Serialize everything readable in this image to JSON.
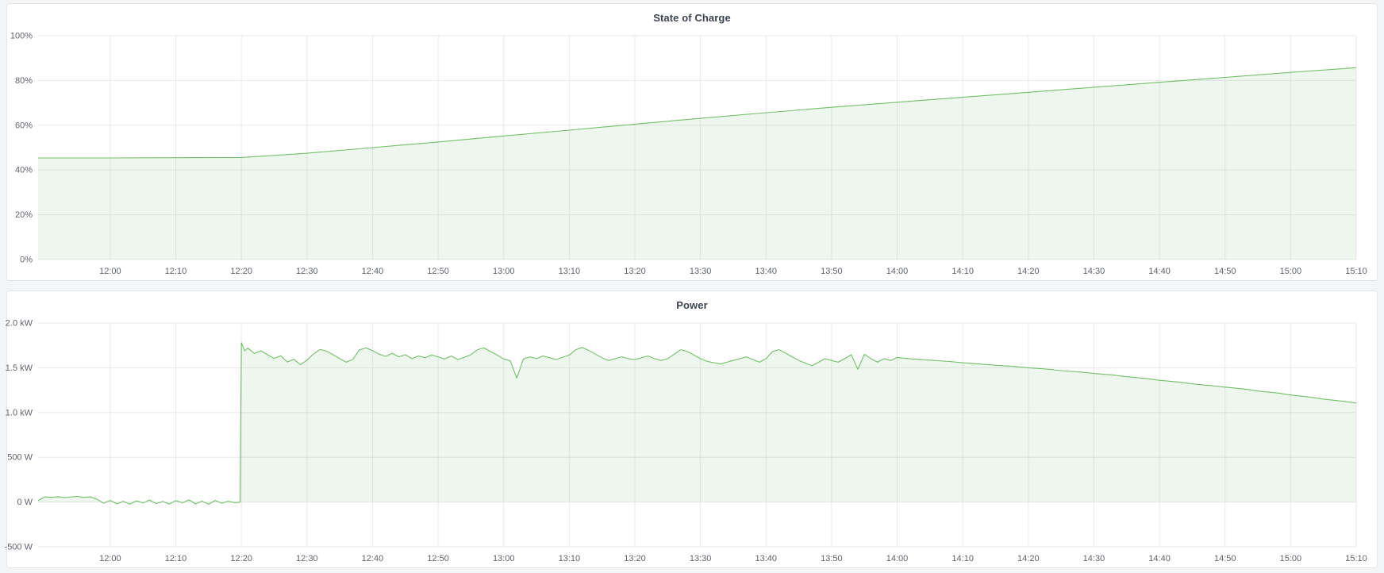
{
  "colors": {
    "line": "#73bf69",
    "fill": "#73bf69",
    "fill_opacity": 0.12,
    "grid": "#e9eaec",
    "axis_text": "#5f646b",
    "title_text": "#3e4450",
    "panel_bg": "#ffffff",
    "panel_border": "#e3e6e8",
    "page_bg": "#f4f5f6"
  },
  "time_axis": {
    "start_min": 709,
    "end_min": 910,
    "tick_minutes": [
      720,
      730,
      740,
      750,
      760,
      770,
      780,
      790,
      800,
      810,
      820,
      830,
      840,
      850,
      860,
      870,
      880,
      890,
      900,
      910
    ],
    "tick_labels": [
      "12:00",
      "12:10",
      "12:20",
      "12:30",
      "12:40",
      "12:50",
      "13:00",
      "13:10",
      "13:20",
      "13:30",
      "13:40",
      "13:50",
      "14:00",
      "14:10",
      "14:20",
      "14:30",
      "14:40",
      "14:50",
      "15:00",
      "15:10"
    ]
  },
  "chart_data": [
    {
      "type": "area",
      "title": "State of Charge",
      "xlabel": "",
      "ylabel": "",
      "ylim": [
        0,
        100
      ],
      "grid": true,
      "legend": "none",
      "baseline": 0,
      "yticks": [
        {
          "v": 100,
          "label": "100%"
        },
        {
          "v": 80,
          "label": "80%"
        },
        {
          "v": 60,
          "label": "60%"
        },
        {
          "v": 40,
          "label": "40%"
        },
        {
          "v": 20,
          "label": "20%"
        },
        {
          "v": 0,
          "label": "0%"
        }
      ],
      "points": [
        [
          709,
          45.4
        ],
        [
          720,
          45.4
        ],
        [
          730,
          45.5
        ],
        [
          740,
          45.6
        ],
        [
          750,
          47.5
        ],
        [
          760,
          50.0
        ],
        [
          770,
          52.5
        ],
        [
          780,
          55.2
        ],
        [
          790,
          57.8
        ],
        [
          800,
          60.5
        ],
        [
          810,
          63.1
        ],
        [
          820,
          65.6
        ],
        [
          830,
          68.0
        ],
        [
          840,
          70.3
        ],
        [
          850,
          72.5
        ],
        [
          860,
          74.7
        ],
        [
          870,
          77.0
        ],
        [
          880,
          79.2
        ],
        [
          890,
          81.4
        ],
        [
          900,
          83.6
        ],
        [
          910,
          85.7
        ]
      ]
    },
    {
      "type": "area",
      "title": "Power",
      "xlabel": "",
      "ylabel": "",
      "ylim": [
        -500,
        2000
      ],
      "grid": true,
      "legend": "none",
      "baseline": 0,
      "yticks": [
        {
          "v": 2000,
          "label": "2.0 kW"
        },
        {
          "v": 1500,
          "label": "1.5 kW"
        },
        {
          "v": 1000,
          "label": "1.0 kW"
        },
        {
          "v": 500,
          "label": "500 W"
        },
        {
          "v": 0,
          "label": "0 W"
        },
        {
          "v": -500,
          "label": "-500 W"
        }
      ],
      "points": [
        [
          709,
          15
        ],
        [
          710,
          58
        ],
        [
          711,
          52
        ],
        [
          712,
          60
        ],
        [
          713,
          50
        ],
        [
          714,
          57
        ],
        [
          715,
          63
        ],
        [
          716,
          52
        ],
        [
          717,
          58
        ],
        [
          718,
          30
        ],
        [
          719,
          -12
        ],
        [
          720,
          18
        ],
        [
          721,
          -20
        ],
        [
          722,
          8
        ],
        [
          723,
          -24
        ],
        [
          724,
          14
        ],
        [
          725,
          -10
        ],
        [
          726,
          22
        ],
        [
          727,
          -18
        ],
        [
          728,
          6
        ],
        [
          729,
          -22
        ],
        [
          730,
          16
        ],
        [
          731,
          -8
        ],
        [
          732,
          24
        ],
        [
          733,
          -20
        ],
        [
          734,
          10
        ],
        [
          735,
          -25
        ],
        [
          736,
          18
        ],
        [
          737,
          -12
        ],
        [
          738,
          8
        ],
        [
          739,
          -6
        ],
        [
          739.8,
          -2
        ],
        [
          740,
          1780
        ],
        [
          740.5,
          1690
        ],
        [
          741,
          1720
        ],
        [
          742,
          1660
        ],
        [
          743,
          1690
        ],
        [
          744,
          1645
        ],
        [
          745,
          1605
        ],
        [
          746,
          1635
        ],
        [
          747,
          1565
        ],
        [
          748,
          1595
        ],
        [
          749,
          1535
        ],
        [
          750,
          1585
        ],
        [
          751,
          1655
        ],
        [
          752,
          1705
        ],
        [
          753,
          1685
        ],
        [
          754,
          1645
        ],
        [
          755,
          1602
        ],
        [
          756,
          1562
        ],
        [
          757,
          1595
        ],
        [
          758,
          1700
        ],
        [
          759,
          1722
        ],
        [
          760,
          1692
        ],
        [
          761,
          1652
        ],
        [
          762,
          1628
        ],
        [
          763,
          1662
        ],
        [
          764,
          1622
        ],
        [
          765,
          1645
        ],
        [
          766,
          1602
        ],
        [
          767,
          1632
        ],
        [
          768,
          1612
        ],
        [
          769,
          1642
        ],
        [
          770,
          1622
        ],
        [
          771,
          1598
        ],
        [
          772,
          1632
        ],
        [
          773,
          1592
        ],
        [
          774,
          1618
        ],
        [
          775,
          1645
        ],
        [
          776,
          1702
        ],
        [
          777,
          1722
        ],
        [
          778,
          1682
        ],
        [
          779,
          1642
        ],
        [
          780,
          1598
        ],
        [
          781,
          1578
        ],
        [
          782,
          1385
        ],
        [
          783,
          1598
        ],
        [
          784,
          1622
        ],
        [
          785,
          1602
        ],
        [
          786,
          1632
        ],
        [
          787,
          1612
        ],
        [
          788,
          1592
        ],
        [
          789,
          1618
        ],
        [
          790,
          1642
        ],
        [
          791,
          1702
        ],
        [
          792,
          1728
        ],
        [
          793,
          1692
        ],
        [
          794,
          1652
        ],
        [
          795,
          1612
        ],
        [
          796,
          1582
        ],
        [
          797,
          1602
        ],
        [
          798,
          1622
        ],
        [
          799,
          1602
        ],
        [
          800,
          1592
        ],
        [
          801,
          1612
        ],
        [
          802,
          1632
        ],
        [
          803,
          1602
        ],
        [
          804,
          1582
        ],
        [
          805,
          1602
        ],
        [
          806,
          1652
        ],
        [
          807,
          1702
        ],
        [
          808,
          1682
        ],
        [
          809,
          1642
        ],
        [
          810,
          1602
        ],
        [
          811,
          1572
        ],
        [
          812,
          1558
        ],
        [
          813,
          1542
        ],
        [
          814,
          1562
        ],
        [
          815,
          1582
        ],
        [
          816,
          1602
        ],
        [
          817,
          1622
        ],
        [
          818,
          1592
        ],
        [
          819,
          1562
        ],
        [
          820,
          1602
        ],
        [
          821,
          1682
        ],
        [
          822,
          1702
        ],
        [
          823,
          1662
        ],
        [
          824,
          1622
        ],
        [
          825,
          1582
        ],
        [
          826,
          1552
        ],
        [
          827,
          1522
        ],
        [
          828,
          1562
        ],
        [
          829,
          1602
        ],
        [
          830,
          1582
        ],
        [
          831,
          1562
        ],
        [
          832,
          1602
        ],
        [
          833,
          1645
        ],
        [
          834,
          1482
        ],
        [
          835,
          1652
        ],
        [
          836,
          1602
        ],
        [
          837,
          1562
        ],
        [
          838,
          1602
        ],
        [
          839,
          1582
        ],
        [
          840,
          1615
        ],
        [
          842,
          1600
        ],
        [
          845,
          1585
        ],
        [
          848,
          1570
        ],
        [
          850,
          1556
        ],
        [
          853,
          1540
        ],
        [
          855,
          1528
        ],
        [
          858,
          1514
        ],
        [
          860,
          1500
        ],
        [
          863,
          1484
        ],
        [
          865,
          1468
        ],
        [
          868,
          1452
        ],
        [
          870,
          1436
        ],
        [
          873,
          1418
        ],
        [
          875,
          1400
        ],
        [
          878,
          1380
        ],
        [
          880,
          1360
        ],
        [
          883,
          1340
        ],
        [
          885,
          1320
        ],
        [
          888,
          1300
        ],
        [
          890,
          1284
        ],
        [
          893,
          1262
        ],
        [
          895,
          1240
        ],
        [
          898,
          1218
        ],
        [
          900,
          1196
        ],
        [
          903,
          1172
        ],
        [
          905,
          1150
        ],
        [
          908,
          1126
        ],
        [
          910,
          1106
        ]
      ]
    }
  ]
}
